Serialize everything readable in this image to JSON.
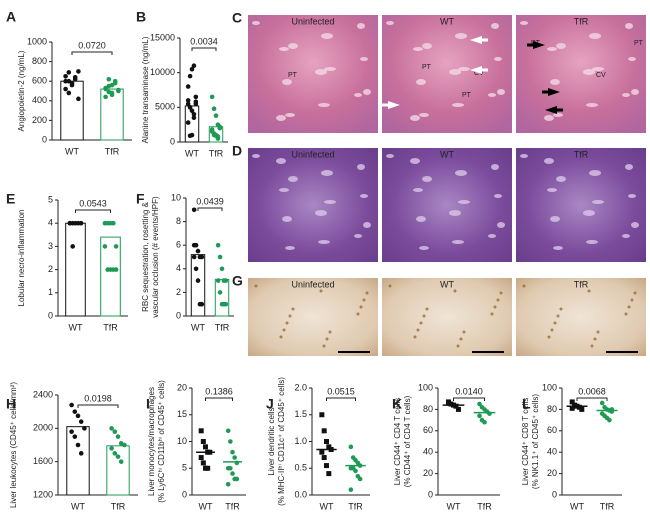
{
  "chart_data": [
    {
      "type": "bar",
      "panel": "A",
      "ylabel": [
        "Angiopoietin-2 (ng/mL)"
      ],
      "categories": [
        "WT",
        "TfR"
      ],
      "colors": [
        "#111111",
        "#1f9a55"
      ],
      "values": [
        600,
        520
      ],
      "points": [
        [
          650,
          600,
          560,
          620,
          700,
          520,
          480,
          580,
          640,
          420,
          600,
          690
        ],
        [
          520,
          550,
          480,
          600,
          500,
          440,
          620,
          460,
          580,
          510,
          530,
          490,
          560
        ]
      ],
      "p": "0.0720",
      "ylim": [
        0,
        1000
      ],
      "yticks": [
        0,
        200,
        400,
        600,
        800,
        1000
      ]
    },
    {
      "type": "bar",
      "panel": "B",
      "ylabel": [
        "Alanine transaminase (ng/mL)"
      ],
      "categories": [
        "WT",
        "TfR"
      ],
      "colors": [
        "#111111",
        "#1f9a55"
      ],
      "values": [
        5200,
        2200
      ],
      "points": [
        [
          5500,
          5000,
          4500,
          3500,
          6500,
          8000,
          9500,
          10500,
          11000,
          5800,
          2800,
          900,
          1000,
          4000,
          5500,
          6000
        ],
        [
          6500,
          4800,
          3800,
          2500,
          2000,
          1500,
          1000,
          900,
          800,
          2200,
          1800,
          1200,
          1000,
          500
        ]
      ],
      "p": "0.0034",
      "ylim": [
        0,
        15000
      ],
      "yticks": [
        0,
        5000,
        10000,
        15000
      ]
    },
    {
      "type": "bar",
      "panel": "E",
      "ylabel": [
        "Lobular necro-inflammation"
      ],
      "categories": [
        "WT",
        "TfR"
      ],
      "colors": [
        "#111111",
        "#1f9a55"
      ],
      "values": [
        4,
        3.4
      ],
      "points": [
        [
          4,
          4,
          4,
          4,
          4,
          4,
          3
        ],
        [
          4,
          4,
          4,
          4,
          3,
          3,
          2,
          2,
          2,
          2
        ]
      ],
      "p": "0.0543",
      "ylim": [
        0,
        5
      ],
      "yticks": [
        0,
        1,
        2,
        3,
        4,
        5
      ]
    },
    {
      "type": "bar",
      "panel": "F",
      "ylabel": [
        "RBC sequestration, rosetting &",
        "vascular occlusion (# events/HPF)"
      ],
      "categories": [
        "WT",
        "TfR"
      ],
      "colors": [
        "#111111",
        "#1f9a55"
      ],
      "values": [
        5.2,
        3.1
      ],
      "points": [
        [
          9,
          6,
          5.5,
          5,
          5,
          5,
          4,
          3,
          1,
          1,
          6
        ],
        [
          6,
          5,
          4,
          3,
          3,
          3,
          2,
          1,
          1,
          1
        ]
      ],
      "p": "0.0439",
      "ylim": [
        0,
        10
      ],
      "yticks": [
        0,
        2,
        4,
        6,
        8,
        10
      ]
    },
    {
      "type": "bar",
      "panel": "H",
      "ylabel": [
        "Liver leukocytes (CD45⁺ cells/mm²)"
      ],
      "categories": [
        "WT",
        "TfR"
      ],
      "colors": [
        "#111111",
        "#1f9a55"
      ],
      "values": [
        2020,
        1790
      ],
      "points": [
        [
          2280,
          2200,
          2150,
          2080,
          2000,
          1960,
          1900,
          1800,
          1700
        ],
        [
          2000,
          1960,
          1900,
          1820,
          1800,
          1760,
          1700,
          1660,
          1600
        ]
      ],
      "p": "0.0198",
      "ylim": [
        1200,
        2400
      ],
      "yticks": [
        1200,
        1600,
        2000,
        2400
      ]
    },
    {
      "type": "strip",
      "panel": "I",
      "ylabel": [
        "Liver monocytes/macrophages",
        "(% Ly6Cʰⁱ CD11bʰⁱ of CD45⁺ cells)"
      ],
      "categories": [
        "WT",
        "TfR"
      ],
      "colors": [
        "#111111",
        "#1f9a55"
      ],
      "values": [
        8,
        6.2
      ],
      "points": [
        [
          12,
          10,
          9,
          8,
          8,
          7,
          6,
          5,
          5
        ],
        [
          12,
          10,
          8,
          7,
          6,
          5,
          5,
          4,
          3,
          3,
          2
        ]
      ],
      "p": "0.1386",
      "ylim": [
        0,
        20
      ],
      "yticks": [
        0,
        5,
        10,
        15,
        20
      ]
    },
    {
      "type": "strip",
      "panel": "J",
      "ylabel": [
        "Liver dendritic cells",
        "(% MHC-IIʰⁱ CD11c⁺ of CD45⁺ cells)"
      ],
      "categories": [
        "WT",
        "TfR"
      ],
      "colors": [
        "#111111",
        "#1f9a55"
      ],
      "values": [
        0.85,
        0.55
      ],
      "points": [
        [
          1.5,
          1.2,
          1.0,
          0.9,
          0.85,
          0.8,
          0.7,
          0.55,
          0.4
        ],
        [
          0.9,
          0.7,
          0.65,
          0.6,
          0.55,
          0.5,
          0.5,
          0.45,
          0.35,
          0.3,
          0.1
        ]
      ],
      "p": "0.0515",
      "ylim": [
        0,
        2
      ],
      "yticks": [
        {
          "value": 0,
          "label": "0.0"
        },
        0.5,
        {
          "value": 1,
          "label": "1.0"
        },
        1.5,
        {
          "value": 2,
          "label": "2.0"
        }
      ]
    },
    {
      "type": "strip",
      "panel": "K",
      "ylabel": [
        "Liver CD44⁺ CD4 T cells",
        "(% CD44⁺ of CD4 T cells)"
      ],
      "categories": [
        "WT",
        "TfR"
      ],
      "colors": [
        "#111111",
        "#1f9a55"
      ],
      "values": [
        84,
        77
      ],
      "points": [
        [
          87,
          85,
          84,
          83,
          80,
          86
        ],
        [
          85,
          82,
          80,
          78,
          76,
          74,
          70,
          68
        ]
      ],
      "p": "0.0140",
      "ylim": [
        0,
        100
      ],
      "yticks": [
        0,
        20,
        40,
        60,
        80,
        100
      ]
    },
    {
      "type": "strip",
      "panel": "L",
      "ylabel": [
        "Liver CD44⁺ CD8 T cells",
        "(% NK1.1⁺ of CD45⁺ cells)"
      ],
      "categories": [
        "WT",
        "TfR"
      ],
      "colors": [
        "#111111",
        "#1f9a55"
      ],
      "values": [
        83,
        79
      ],
      "points": [
        [
          87,
          84,
          83,
          82,
          80,
          81
        ],
        [
          86,
          82,
          80,
          79,
          78,
          76,
          74,
          72,
          70,
          80
        ]
      ],
      "p": "0.0068",
      "ylim": [
        0,
        100
      ],
      "yticks": [
        0,
        20,
        40,
        60,
        80,
        100
      ]
    }
  ],
  "micrographs": [
    {
      "panel": "C",
      "images": [
        {
          "title": "Uninfected",
          "labels": [
            "PT"
          ]
        },
        {
          "title": "WT",
          "labels": [
            "CV",
            "PT",
            "PT"
          ]
        },
        {
          "title": "TfR",
          "labels": [
            "PT",
            "CV",
            "PT"
          ]
        }
      ]
    },
    {
      "panel": "D",
      "images": [
        {
          "title": "Uninfected",
          "labels": []
        },
        {
          "title": "WT",
          "labels": []
        },
        {
          "title": "TfR",
          "labels": []
        }
      ]
    },
    {
      "panel": "G",
      "images": [
        {
          "title": "Uninfected",
          "labels": []
        },
        {
          "title": "WT",
          "labels": []
        },
        {
          "title": "TfR",
          "labels": []
        }
      ]
    }
  ]
}
